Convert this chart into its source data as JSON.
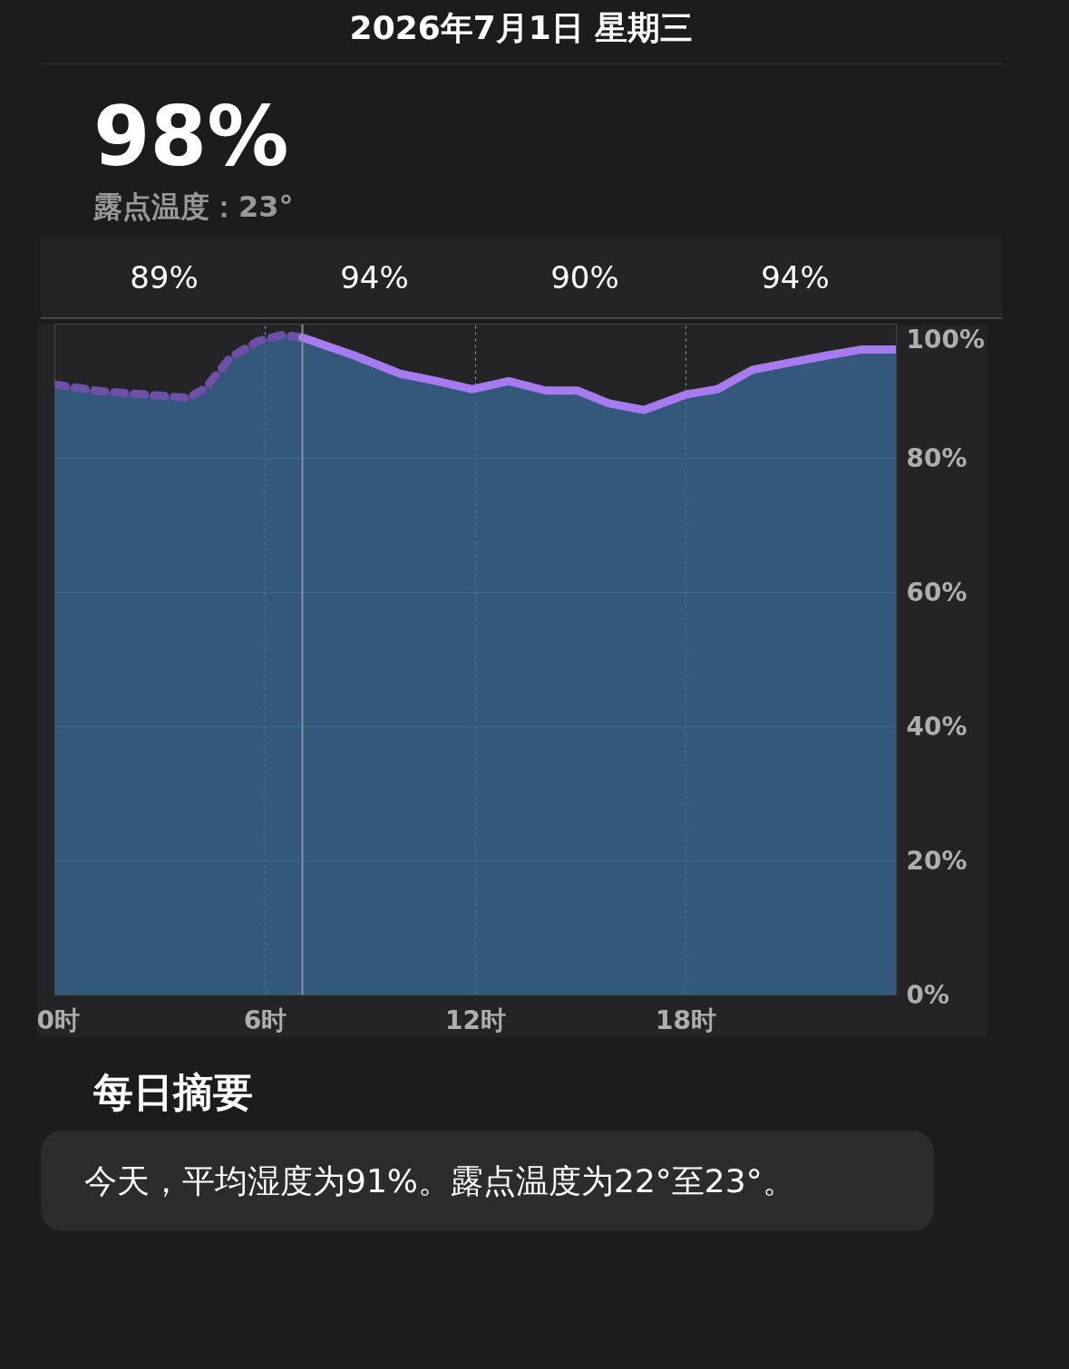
{
  "chart_data": {
    "type": "area",
    "title": "2026年7月1日 星期三",
    "subtitle": "98%",
    "annotations": [
      "露点温度：23°",
      "89%",
      "94%",
      "90%",
      "94%",
      "每日摘要",
      "今天，平均湿度为91%。露点温度为22°至23°。"
    ],
    "xlim": [
      0,
      24
    ],
    "ylim": [
      0,
      100
    ],
    "xticks": [
      {
        "value": 0,
        "label": "0时"
      },
      {
        "value": 6,
        "label": "6时"
      },
      {
        "value": 12,
        "label": "12时"
      },
      {
        "value": 18,
        "label": "18时"
      }
    ],
    "yticks": [
      {
        "value": 0,
        "label": "0%"
      },
      {
        "value": 20,
        "label": "20%"
      },
      {
        "value": 40,
        "label": "40%"
      },
      {
        "value": 60,
        "label": "60%"
      },
      {
        "value": 80,
        "label": "80%"
      },
      {
        "value": 100,
        "label": "100%"
      }
    ],
    "grid": true,
    "marker": "none",
    "ref_lines": [
      {
        "axis": "x",
        "value": 7.06,
        "color": "#8e8e93",
        "line_style": "solid"
      }
    ],
    "series": [
      {
        "color": "#6e50a8",
        "line_style": "dashed",
        "x": [
          0,
          1.3,
          2.6,
          3.8,
          4.3,
          5,
          5.8,
          6.5,
          7.06
        ],
        "values": [
          91,
          90,
          89.5,
          89,
          90.5,
          95,
          97.5,
          98.4,
          98
        ]
      },
      {
        "color": "#a77bf0",
        "line_style": "solid",
        "x": [
          7.06,
          8.55,
          9.85,
          10.9,
          11.9,
          12.95,
          14,
          14.9,
          15.8,
          16.8,
          18,
          18.9,
          19.9,
          21,
          22,
          23,
          24
        ],
        "values": [
          98,
          95.3,
          92.6,
          91.5,
          90.3,
          91.5,
          90.1,
          90.1,
          88.2,
          87.2,
          89.5,
          90.3,
          93.2,
          94.3,
          95.3,
          96.2,
          96.2
        ]
      }
    ]
  }
}
